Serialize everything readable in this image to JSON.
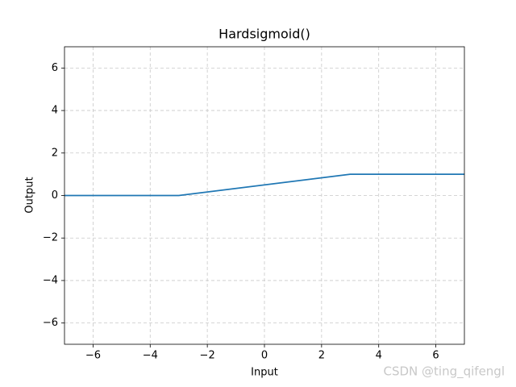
{
  "chart_data": {
    "type": "line",
    "title": "Hardsigmoid()",
    "x_label": "Input",
    "y_label": "Output",
    "x": [
      -7,
      -3,
      3,
      7
    ],
    "series": [
      {
        "color": "#1f77b4",
        "values": [
          0,
          0,
          1,
          1
        ]
      }
    ],
    "xlim": [
      -7,
      7
    ],
    "xticks": [
      {
        "value": -6,
        "label": "−6"
      },
      {
        "value": -4,
        "label": "−4"
      },
      {
        "value": -2,
        "label": "−2"
      },
      0,
      2,
      4,
      6
    ],
    "ylim": [
      -7,
      7
    ],
    "yticks": [
      {
        "value": -6,
        "label": "−6"
      },
      {
        "value": -4,
        "label": "−4"
      },
      {
        "value": -2,
        "label": "−2"
      },
      0,
      2,
      4,
      6
    ],
    "grid": true,
    "watermark": "CSDN @ting_qifengl"
  }
}
